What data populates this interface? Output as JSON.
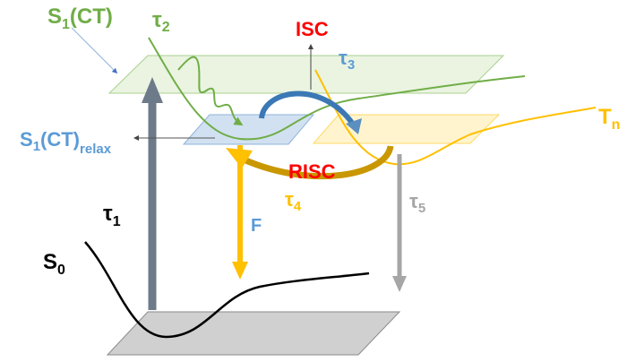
{
  "labels": {
    "s1ct": "S",
    "s1ct_sub": "1",
    "s1ct_tail": "(CT)",
    "tau2": "τ",
    "tau2_sub": "2",
    "isc": "ISC",
    "tau3": "τ",
    "tau3_sub": "3",
    "s1relax": "S",
    "s1relax_sub": "1",
    "s1relax_mid": "(CT)",
    "s1relax_tail": "relax",
    "tn": "T",
    "tn_sub": "n",
    "risc": "RISC",
    "tau4": "τ",
    "tau4_sub": "4",
    "tau5": "τ",
    "tau5_sub": "5",
    "tau1": "τ",
    "tau1_sub": "1",
    "f": "F",
    "s0": "S",
    "s0_sub": "0"
  },
  "colors": {
    "s1ct": "#70ad47",
    "relax": "#5b9bd5",
    "triplet": "#ffc000",
    "red": "#ff0000",
    "gray": "#a6a6a6",
    "dark_gray": "#6d7a8a",
    "gold": "#c99700",
    "isc_arrow": "#3b78b5"
  }
}
